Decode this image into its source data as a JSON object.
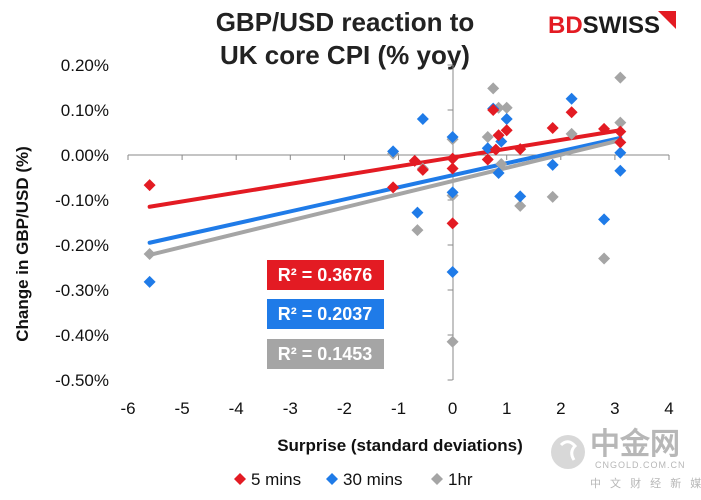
{
  "brand": {
    "prefix": "BD",
    "suffix": "SWISS",
    "prefix_color": "#e31b23",
    "suffix_color": "#1b1b1b"
  },
  "watermark": {
    "main": "中金网",
    "domain": "CNGOLD.COM.CN",
    "sub": "中 文 财 经 新 媒 体"
  },
  "chart_data": {
    "type": "scatter",
    "title": [
      "GBP/USD reaction to",
      "UK core CPI (% yoy)"
    ],
    "xlabel": "Surprise (standard deviations)",
    "ylabel": "Change in GBP/USD  (%)",
    "xlim": [
      -6,
      4
    ],
    "ylim": [
      -0.5,
      0.2
    ],
    "x_ticks": [
      "-6",
      "-5",
      "-4",
      "-3",
      "-2",
      "-1",
      "0",
      "1",
      "2",
      "3",
      "4"
    ],
    "y_ticks": [
      "0.20%",
      "0.10%",
      "0.00%",
      "-0.10%",
      "-0.20%",
      "-0.30%",
      "-0.40%",
      "-0.50%"
    ],
    "grid": false,
    "legend_position": "bottom",
    "series": [
      {
        "name": "5 mins",
        "color": "#e31b23",
        "r2": "R² = 0.3676",
        "trend": [
          [
            -5.6,
            -0.115
          ],
          [
            3.1,
            0.055
          ]
        ],
        "points": [
          [
            -5.6,
            -0.067
          ],
          [
            -1.1,
            -0.072
          ],
          [
            -0.7,
            -0.013
          ],
          [
            -0.55,
            -0.033
          ],
          [
            0,
            -0.03
          ],
          [
            0,
            -0.008
          ],
          [
            0,
            -0.152
          ],
          [
            0.65,
            -0.01
          ],
          [
            0.75,
            0.1
          ],
          [
            0.8,
            0.012
          ],
          [
            0.85,
            0.044
          ],
          [
            1.0,
            0.055
          ],
          [
            1.25,
            0.013
          ],
          [
            1.85,
            0.06
          ],
          [
            2.2,
            0.095
          ],
          [
            2.8,
            0.058
          ],
          [
            3.1,
            0.052
          ],
          [
            3.1,
            0.028
          ]
        ]
      },
      {
        "name": "30 mins",
        "color": "#1f7be8",
        "r2": "R² = 0.2037",
        "trend": [
          [
            -5.6,
            -0.195
          ],
          [
            3.1,
            0.038
          ]
        ],
        "points": [
          [
            -5.6,
            -0.282
          ],
          [
            -1.1,
            0.008
          ],
          [
            -0.65,
            -0.128
          ],
          [
            -0.55,
            0.08
          ],
          [
            0,
            0.04
          ],
          [
            0,
            -0.083
          ],
          [
            0,
            -0.26
          ],
          [
            0.65,
            0.015
          ],
          [
            0.75,
            0.103
          ],
          [
            0.85,
            -0.04
          ],
          [
            0.9,
            0.03
          ],
          [
            1.0,
            0.08
          ],
          [
            1.25,
            -0.092
          ],
          [
            1.85,
            -0.022
          ],
          [
            2.2,
            0.125
          ],
          [
            2.8,
            -0.143
          ],
          [
            3.1,
            0.005
          ],
          [
            3.1,
            -0.035
          ]
        ]
      },
      {
        "name": "1hr",
        "color": "#a5a5a5",
        "r2": "R² = 0.1453",
        "trend": [
          [
            -5.6,
            -0.222
          ],
          [
            3.1,
            0.033
          ]
        ],
        "points": [
          [
            -5.6,
            -0.22
          ],
          [
            -1.1,
            0.003
          ],
          [
            -0.65,
            -0.167
          ],
          [
            -0.55,
            -0.03
          ],
          [
            0,
            0.035
          ],
          [
            0,
            -0.09
          ],
          [
            0,
            -0.415
          ],
          [
            0.65,
            0.04
          ],
          [
            0.75,
            0.148
          ],
          [
            0.85,
            0.105
          ],
          [
            0.9,
            -0.02
          ],
          [
            1.0,
            0.105
          ],
          [
            1.25,
            -0.113
          ],
          [
            1.85,
            -0.093
          ],
          [
            2.2,
            0.047
          ],
          [
            2.8,
            -0.23
          ],
          [
            3.1,
            0.072
          ],
          [
            3.1,
            0.172
          ]
        ]
      }
    ]
  }
}
